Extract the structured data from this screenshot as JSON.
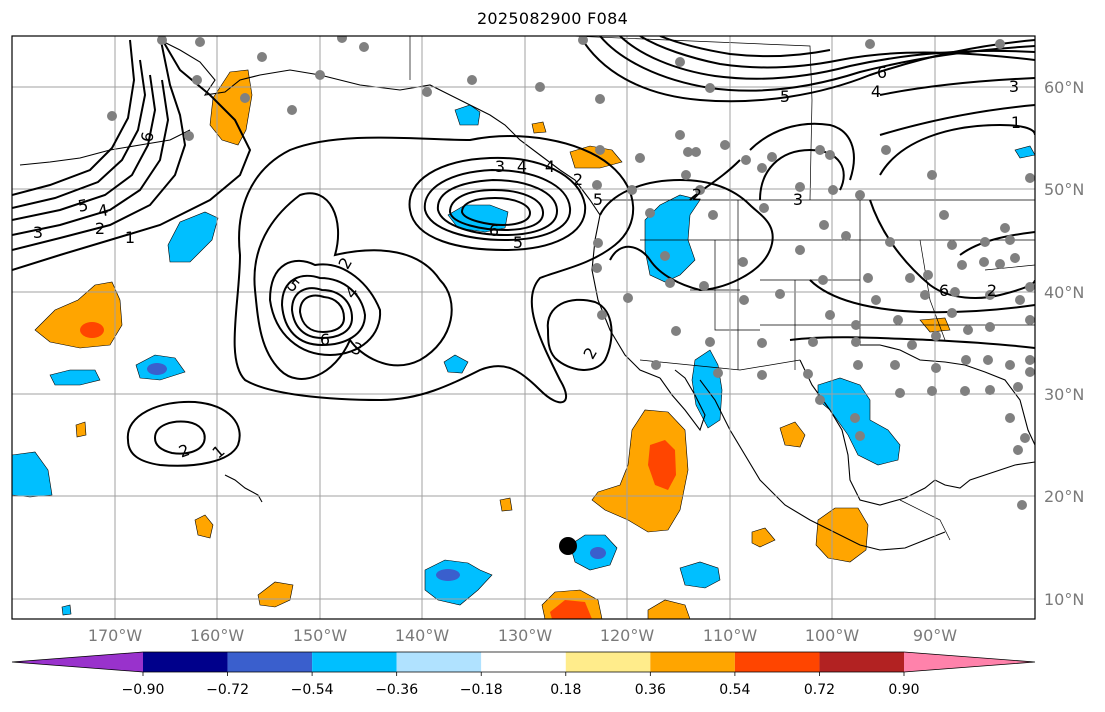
{
  "title": "2025082900 F084",
  "map": {
    "lat_labels": [
      "60°N",
      "50°N",
      "40°N",
      "30°N",
      "20°N",
      "10°N"
    ],
    "lon_labels": [
      "170°W",
      "160°W",
      "150°W",
      "140°W",
      "130°W",
      "120°W",
      "110°W",
      "100°W",
      "90°W"
    ],
    "contour_labels": [
      {
        "id": "c1",
        "text": "6"
      },
      {
        "id": "c2",
        "text": "5"
      },
      {
        "id": "c3",
        "text": "4"
      },
      {
        "id": "c4",
        "text": "3"
      },
      {
        "id": "c5",
        "text": "2"
      },
      {
        "id": "c6",
        "text": "1"
      },
      {
        "id": "c7",
        "text": "2"
      },
      {
        "id": "c8",
        "text": "4"
      },
      {
        "id": "c9",
        "text": "5"
      },
      {
        "id": "c10",
        "text": "6"
      },
      {
        "id": "c11",
        "text": "3"
      },
      {
        "id": "c12",
        "text": "2"
      },
      {
        "id": "c13",
        "text": "1"
      },
      {
        "id": "c14",
        "text": "6"
      },
      {
        "id": "c15",
        "text": "5"
      },
      {
        "id": "c16",
        "text": "4"
      },
      {
        "id": "c17",
        "text": "2"
      },
      {
        "id": "c18",
        "text": "6"
      },
      {
        "id": "c19",
        "text": "5"
      },
      {
        "id": "c20",
        "text": "4"
      },
      {
        "id": "c21",
        "text": "3"
      },
      {
        "id": "c22",
        "text": "3"
      },
      {
        "id": "c23",
        "text": "2"
      },
      {
        "id": "c24",
        "text": "2"
      },
      {
        "id": "c25",
        "text": "1"
      },
      {
        "id": "c26",
        "text": "3"
      },
      {
        "id": "c27",
        "text": "4"
      },
      {
        "id": "c28",
        "text": "2"
      },
      {
        "id": "c29",
        "text": "6"
      },
      {
        "id": "c30",
        "text": "5"
      }
    ]
  },
  "colorbar": {
    "labels": [
      "−0.90",
      "−0.72",
      "−0.54",
      "−0.36",
      "−0.18",
      "0.18",
      "0.36",
      "0.54",
      "0.72",
      "0.90"
    ],
    "colors": [
      "#9932cc",
      "#00008b",
      "#3a5fcd",
      "#00bfff",
      "#b0e2ff",
      "#ffffff",
      "#ffec8b",
      "#ffa500",
      "#ff4500",
      "#b22222",
      "#ff82ab"
    ]
  },
  "colors": {
    "blue_fill": "#00bfff",
    "dark_blue_fill": "#3a5fcd",
    "orange_fill": "#ffa500",
    "red_fill": "#ff4500",
    "station_dot": "#808080",
    "marker": "#000000"
  }
}
